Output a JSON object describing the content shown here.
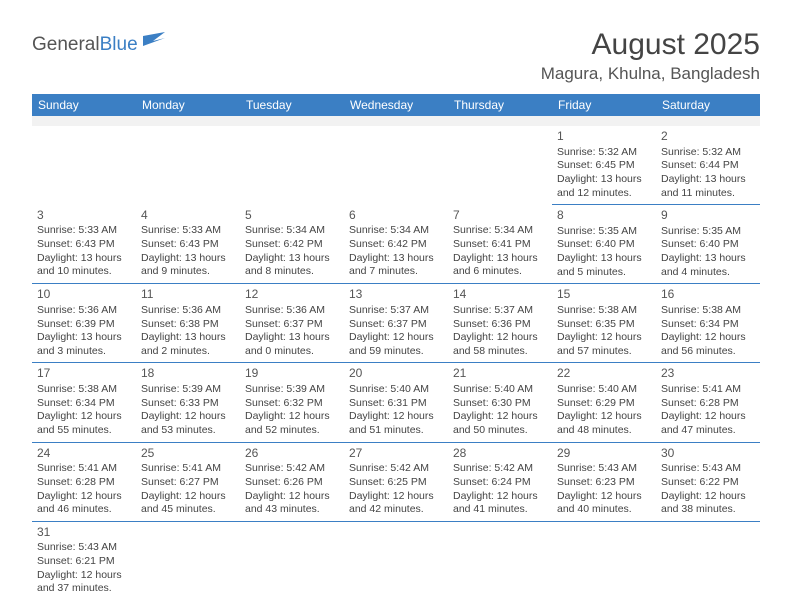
{
  "logo": {
    "part1": "General",
    "part2": "Blue"
  },
  "title": "August 2025",
  "location": "Magura, Khulna, Bangladesh",
  "weekdays": [
    "Sunday",
    "Monday",
    "Tuesday",
    "Wednesday",
    "Thursday",
    "Friday",
    "Saturday"
  ],
  "colors": {
    "header_bg": "#3b7fc4",
    "header_text": "#ffffff",
    "border": "#3b7fc4",
    "text": "#444444",
    "grey_row": "#f2f2f2",
    "logo_blue": "#3b7fc4",
    "logo_grey": "#555555"
  },
  "days": {
    "1": {
      "sunrise": "Sunrise: 5:32 AM",
      "sunset": "Sunset: 6:45 PM",
      "daylight": "Daylight: 13 hours and 12 minutes."
    },
    "2": {
      "sunrise": "Sunrise: 5:32 AM",
      "sunset": "Sunset: 6:44 PM",
      "daylight": "Daylight: 13 hours and 11 minutes."
    },
    "3": {
      "sunrise": "Sunrise: 5:33 AM",
      "sunset": "Sunset: 6:43 PM",
      "daylight": "Daylight: 13 hours and 10 minutes."
    },
    "4": {
      "sunrise": "Sunrise: 5:33 AM",
      "sunset": "Sunset: 6:43 PM",
      "daylight": "Daylight: 13 hours and 9 minutes."
    },
    "5": {
      "sunrise": "Sunrise: 5:34 AM",
      "sunset": "Sunset: 6:42 PM",
      "daylight": "Daylight: 13 hours and 8 minutes."
    },
    "6": {
      "sunrise": "Sunrise: 5:34 AM",
      "sunset": "Sunset: 6:42 PM",
      "daylight": "Daylight: 13 hours and 7 minutes."
    },
    "7": {
      "sunrise": "Sunrise: 5:34 AM",
      "sunset": "Sunset: 6:41 PM",
      "daylight": "Daylight: 13 hours and 6 minutes."
    },
    "8": {
      "sunrise": "Sunrise: 5:35 AM",
      "sunset": "Sunset: 6:40 PM",
      "daylight": "Daylight: 13 hours and 5 minutes."
    },
    "9": {
      "sunrise": "Sunrise: 5:35 AM",
      "sunset": "Sunset: 6:40 PM",
      "daylight": "Daylight: 13 hours and 4 minutes."
    },
    "10": {
      "sunrise": "Sunrise: 5:36 AM",
      "sunset": "Sunset: 6:39 PM",
      "daylight": "Daylight: 13 hours and 3 minutes."
    },
    "11": {
      "sunrise": "Sunrise: 5:36 AM",
      "sunset": "Sunset: 6:38 PM",
      "daylight": "Daylight: 13 hours and 2 minutes."
    },
    "12": {
      "sunrise": "Sunrise: 5:36 AM",
      "sunset": "Sunset: 6:37 PM",
      "daylight": "Daylight: 13 hours and 0 minutes."
    },
    "13": {
      "sunrise": "Sunrise: 5:37 AM",
      "sunset": "Sunset: 6:37 PM",
      "daylight": "Daylight: 12 hours and 59 minutes."
    },
    "14": {
      "sunrise": "Sunrise: 5:37 AM",
      "sunset": "Sunset: 6:36 PM",
      "daylight": "Daylight: 12 hours and 58 minutes."
    },
    "15": {
      "sunrise": "Sunrise: 5:38 AM",
      "sunset": "Sunset: 6:35 PM",
      "daylight": "Daylight: 12 hours and 57 minutes."
    },
    "16": {
      "sunrise": "Sunrise: 5:38 AM",
      "sunset": "Sunset: 6:34 PM",
      "daylight": "Daylight: 12 hours and 56 minutes."
    },
    "17": {
      "sunrise": "Sunrise: 5:38 AM",
      "sunset": "Sunset: 6:34 PM",
      "daylight": "Daylight: 12 hours and 55 minutes."
    },
    "18": {
      "sunrise": "Sunrise: 5:39 AM",
      "sunset": "Sunset: 6:33 PM",
      "daylight": "Daylight: 12 hours and 53 minutes."
    },
    "19": {
      "sunrise": "Sunrise: 5:39 AM",
      "sunset": "Sunset: 6:32 PM",
      "daylight": "Daylight: 12 hours and 52 minutes."
    },
    "20": {
      "sunrise": "Sunrise: 5:40 AM",
      "sunset": "Sunset: 6:31 PM",
      "daylight": "Daylight: 12 hours and 51 minutes."
    },
    "21": {
      "sunrise": "Sunrise: 5:40 AM",
      "sunset": "Sunset: 6:30 PM",
      "daylight": "Daylight: 12 hours and 50 minutes."
    },
    "22": {
      "sunrise": "Sunrise: 5:40 AM",
      "sunset": "Sunset: 6:29 PM",
      "daylight": "Daylight: 12 hours and 48 minutes."
    },
    "23": {
      "sunrise": "Sunrise: 5:41 AM",
      "sunset": "Sunset: 6:28 PM",
      "daylight": "Daylight: 12 hours and 47 minutes."
    },
    "24": {
      "sunrise": "Sunrise: 5:41 AM",
      "sunset": "Sunset: 6:28 PM",
      "daylight": "Daylight: 12 hours and 46 minutes."
    },
    "25": {
      "sunrise": "Sunrise: 5:41 AM",
      "sunset": "Sunset: 6:27 PM",
      "daylight": "Daylight: 12 hours and 45 minutes."
    },
    "26": {
      "sunrise": "Sunrise: 5:42 AM",
      "sunset": "Sunset: 6:26 PM",
      "daylight": "Daylight: 12 hours and 43 minutes."
    },
    "27": {
      "sunrise": "Sunrise: 5:42 AM",
      "sunset": "Sunset: 6:25 PM",
      "daylight": "Daylight: 12 hours and 42 minutes."
    },
    "28": {
      "sunrise": "Sunrise: 5:42 AM",
      "sunset": "Sunset: 6:24 PM",
      "daylight": "Daylight: 12 hours and 41 minutes."
    },
    "29": {
      "sunrise": "Sunrise: 5:43 AM",
      "sunset": "Sunset: 6:23 PM",
      "daylight": "Daylight: 12 hours and 40 minutes."
    },
    "30": {
      "sunrise": "Sunrise: 5:43 AM",
      "sunset": "Sunset: 6:22 PM",
      "daylight": "Daylight: 12 hours and 38 minutes."
    },
    "31": {
      "sunrise": "Sunrise: 5:43 AM",
      "sunset": "Sunset: 6:21 PM",
      "daylight": "Daylight: 12 hours and 37 minutes."
    }
  },
  "layout": {
    "first_weekday_index": 5,
    "num_days": 31
  }
}
